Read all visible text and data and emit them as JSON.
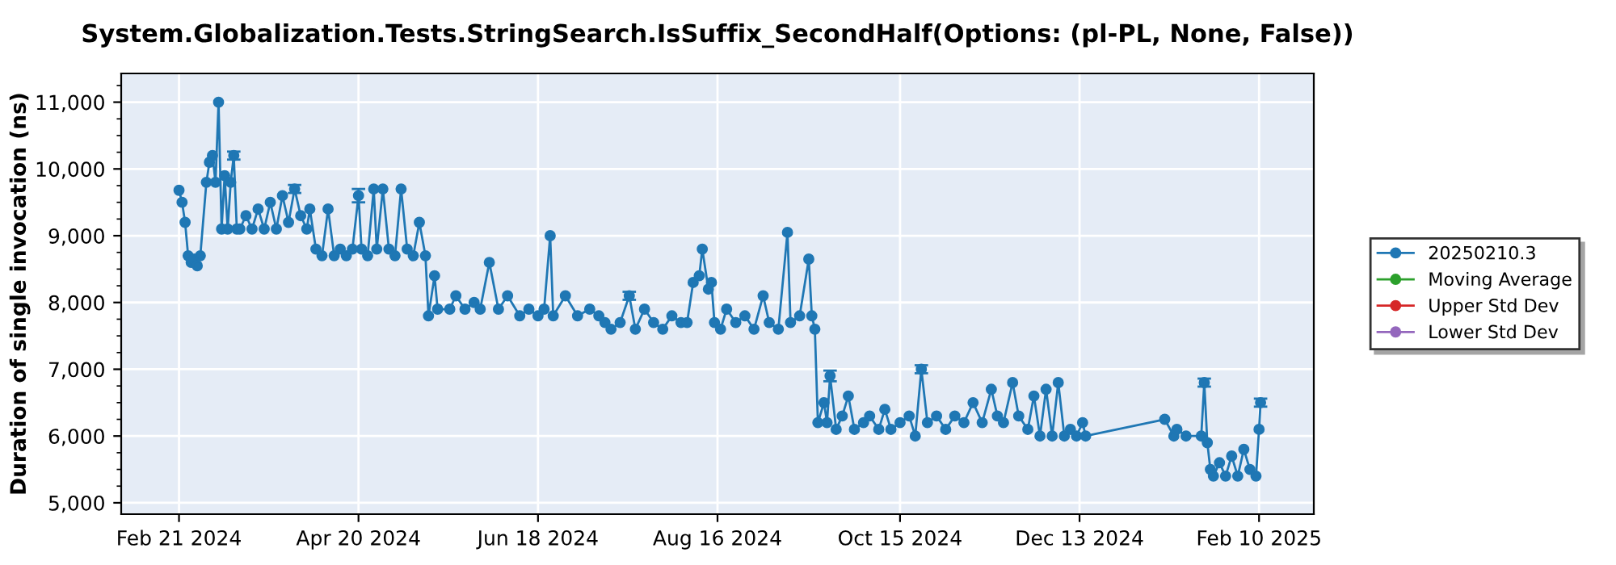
{
  "chart_data": {
    "type": "line",
    "title": "System.Globalization.Tests.StringSearch.IsSuffix_SecondHalf(Options: (pl-PL, None, False))",
    "ylabel": "Duration of single invocation (ns)",
    "x": [
      "2024-02-21",
      "2024-02-22",
      "2024-02-23",
      "2024-02-24",
      "2024-02-25",
      "2024-02-26",
      "2024-02-27",
      "2024-02-28",
      "2024-03-01",
      "2024-03-02",
      "2024-03-03",
      "2024-03-04",
      "2024-03-05",
      "2024-03-06",
      "2024-03-07",
      "2024-03-08",
      "2024-03-09",
      "2024-03-10",
      "2024-03-11",
      "2024-03-12",
      "2024-03-14",
      "2024-03-16",
      "2024-03-18",
      "2024-03-20",
      "2024-03-22",
      "2024-03-24",
      "2024-03-26",
      "2024-03-28",
      "2024-03-30",
      "2024-04-01",
      "2024-04-03",
      "2024-04-04",
      "2024-04-06",
      "2024-04-08",
      "2024-04-10",
      "2024-04-12",
      "2024-04-14",
      "2024-04-16",
      "2024-04-18",
      "2024-04-20",
      "2024-04-21",
      "2024-04-23",
      "2024-04-25",
      "2024-04-26",
      "2024-04-28",
      "2024-04-30",
      "2024-05-02",
      "2024-05-04",
      "2024-05-06",
      "2024-05-08",
      "2024-05-10",
      "2024-05-12",
      "2024-05-13",
      "2024-05-15",
      "2024-05-16",
      "2024-05-20",
      "2024-05-22",
      "2024-05-25",
      "2024-05-28",
      "2024-05-30",
      "2024-06-02",
      "2024-06-05",
      "2024-06-08",
      "2024-06-12",
      "2024-06-15",
      "2024-06-18",
      "2024-06-20",
      "2024-06-22",
      "2024-06-23",
      "2024-06-27",
      "2024-07-01",
      "2024-07-05",
      "2024-07-08",
      "2024-07-10",
      "2024-07-12",
      "2024-07-15",
      "2024-07-18",
      "2024-07-20",
      "2024-07-23",
      "2024-07-26",
      "2024-07-29",
      "2024-08-01",
      "2024-08-04",
      "2024-08-06",
      "2024-08-08",
      "2024-08-10",
      "2024-08-11",
      "2024-08-13",
      "2024-08-14",
      "2024-08-15",
      "2024-08-17",
      "2024-08-19",
      "2024-08-22",
      "2024-08-25",
      "2024-08-28",
      "2024-08-31",
      "2024-09-02",
      "2024-09-05",
      "2024-09-08",
      "2024-09-09",
      "2024-09-12",
      "2024-09-15",
      "2024-09-16",
      "2024-09-17",
      "2024-09-18",
      "2024-09-20",
      "2024-09-21",
      "2024-09-22",
      "2024-09-24",
      "2024-09-26",
      "2024-09-28",
      "2024-09-30",
      "2024-10-03",
      "2024-10-05",
      "2024-10-08",
      "2024-10-10",
      "2024-10-12",
      "2024-10-15",
      "2024-10-18",
      "2024-10-20",
      "2024-10-22",
      "2024-10-24",
      "2024-10-27",
      "2024-10-30",
      "2024-11-02",
      "2024-11-05",
      "2024-11-08",
      "2024-11-11",
      "2024-11-14",
      "2024-11-16",
      "2024-11-18",
      "2024-11-21",
      "2024-11-23",
      "2024-11-26",
      "2024-11-28",
      "2024-11-30",
      "2024-12-02",
      "2024-12-04",
      "2024-12-06",
      "2024-12-08",
      "2024-12-10",
      "2024-12-12",
      "2024-12-14",
      "2024-12-15",
      "2025-01-10",
      "2025-01-13",
      "2025-01-14",
      "2025-01-17",
      "2025-01-22",
      "2025-01-23",
      "2025-01-24",
      "2025-01-25",
      "2025-01-26",
      "2025-01-28",
      "2025-01-30",
      "2025-02-01",
      "2025-02-03",
      "2025-02-05",
      "2025-02-07",
      "2025-02-09",
      "2025-02-10",
      "2025-02-10T12:00"
    ],
    "series": [
      {
        "name": "20250210.3",
        "color": "#1f77b4",
        "values": [
          9680,
          9500,
          9200,
          8700,
          8600,
          8650,
          8550,
          8700,
          9800,
          10100,
          10200,
          9800,
          11000,
          9100,
          9900,
          9100,
          9800,
          10200,
          9100,
          9100,
          9300,
          9100,
          9400,
          9100,
          9500,
          9100,
          9600,
          9200,
          9700,
          9300,
          9100,
          9400,
          8800,
          8700,
          9400,
          8700,
          8800,
          8700,
          8800,
          9600,
          8800,
          8700,
          9700,
          8800,
          9700,
          8800,
          8700,
          9700,
          8800,
          8700,
          9200,
          8700,
          7800,
          8400,
          7900,
          7900,
          8100,
          7900,
          8000,
          7900,
          8600,
          7900,
          8100,
          7800,
          7900,
          7800,
          7900,
          9000,
          7800,
          8100,
          7800,
          7900,
          7800,
          7700,
          7600,
          7700,
          8100,
          7600,
          7900,
          7700,
          7600,
          7800,
          7700,
          7700,
          8300,
          8400,
          8800,
          8200,
          8300,
          7700,
          7600,
          7900,
          7700,
          7800,
          7600,
          8100,
          7700,
          7600,
          9050,
          7700,
          7800,
          8650,
          7800,
          7600,
          6200,
          6500,
          6200,
          6900,
          6100,
          6300,
          6600,
          6100,
          6200,
          6300,
          6100,
          6400,
          6100,
          6200,
          6300,
          6000,
          7000,
          6200,
          6300,
          6100,
          6300,
          6200,
          6500,
          6200,
          6700,
          6300,
          6200,
          6800,
          6300,
          6100,
          6600,
          6000,
          6700,
          6000,
          6800,
          6000,
          6100,
          6000,
          6200,
          6000,
          6250,
          6000,
          6100,
          6000,
          6000,
          6800,
          5900,
          5500,
          5400,
          5600,
          5400,
          5700,
          5400,
          5800,
          5500,
          5400,
          6100,
          6500
        ],
        "errors": [
          null,
          null,
          null,
          null,
          null,
          null,
          null,
          null,
          null,
          null,
          null,
          null,
          null,
          null,
          null,
          null,
          null,
          60,
          null,
          null,
          null,
          null,
          null,
          null,
          null,
          null,
          null,
          null,
          60,
          null,
          null,
          null,
          null,
          null,
          null,
          null,
          null,
          null,
          null,
          100,
          null,
          null,
          null,
          null,
          null,
          null,
          null,
          null,
          null,
          null,
          null,
          null,
          null,
          null,
          null,
          null,
          null,
          null,
          null,
          null,
          null,
          null,
          null,
          null,
          null,
          null,
          null,
          null,
          null,
          null,
          null,
          null,
          null,
          null,
          null,
          null,
          60,
          null,
          null,
          null,
          null,
          null,
          null,
          null,
          null,
          null,
          null,
          null,
          null,
          null,
          null,
          null,
          null,
          null,
          null,
          null,
          null,
          null,
          null,
          null,
          null,
          null,
          null,
          null,
          null,
          null,
          null,
          80,
          null,
          null,
          null,
          null,
          null,
          null,
          null,
          null,
          null,
          null,
          null,
          null,
          60,
          null,
          null,
          null,
          null,
          null,
          null,
          null,
          null,
          null,
          null,
          null,
          null,
          null,
          null,
          null,
          null,
          null,
          null,
          null,
          null,
          null,
          null,
          null,
          null,
          null,
          null,
          null,
          null,
          60,
          null,
          null,
          null,
          null,
          null,
          null,
          null,
          null,
          null,
          null,
          null,
          60
        ]
      },
      {
        "name": "Moving Average",
        "color": "#2ca02c",
        "values": [
          null,
          null,
          null,
          null,
          null,
          null,
          null,
          null,
          null,
          null,
          null,
          null,
          null,
          null,
          null,
          null,
          null,
          null,
          null,
          null,
          null,
          null,
          null,
          null,
          null,
          null,
          null,
          null,
          null,
          null,
          null,
          null,
          null,
          null,
          null,
          null,
          null,
          null,
          null,
          null,
          null,
          null,
          null,
          null,
          null,
          null,
          null,
          null,
          null,
          null,
          null,
          null,
          null,
          null,
          null,
          null,
          null,
          null,
          null,
          null,
          null,
          null,
          null,
          null,
          null,
          null,
          null,
          null,
          null,
          null,
          null,
          null,
          null,
          null,
          null,
          null,
          null,
          null,
          null,
          null,
          null,
          null,
          null,
          null,
          null,
          null,
          null,
          null,
          null,
          null,
          null,
          null,
          null,
          null,
          null,
          null,
          null,
          null,
          null,
          null,
          null,
          null,
          null,
          null,
          null,
          null,
          null,
          null,
          null,
          null,
          null,
          null,
          null,
          null,
          null,
          null,
          null,
          null,
          null,
          null,
          null,
          null,
          null,
          null,
          null,
          null,
          null,
          null,
          null,
          null,
          null,
          null,
          null,
          null,
          null,
          null,
          null,
          null,
          null,
          null,
          null,
          null,
          null,
          null,
          null,
          null,
          null,
          null,
          null,
          null,
          null,
          null,
          null,
          null,
          null,
          null,
          null,
          null,
          null,
          null,
          null,
          null
        ]
      },
      {
        "name": "Upper Std Dev",
        "color": "#d62728",
        "values": [
          null,
          null,
          null,
          null,
          null,
          null,
          null,
          null,
          null,
          null,
          null,
          null,
          null,
          null,
          null,
          null,
          null,
          null,
          null,
          null,
          null,
          null,
          null,
          null,
          null,
          null,
          null,
          null,
          null,
          null,
          null,
          null,
          null,
          null,
          null,
          null,
          null,
          null,
          null,
          null,
          null,
          null,
          null,
          null,
          null,
          null,
          null,
          null,
          null,
          null,
          null,
          null,
          null,
          null,
          null,
          null,
          null,
          null,
          null,
          null,
          null,
          null,
          null,
          null,
          null,
          null,
          null,
          null,
          null,
          null,
          null,
          null,
          null,
          null,
          null,
          null,
          null,
          null,
          null,
          null,
          null,
          null,
          null,
          null,
          null,
          null,
          null,
          null,
          null,
          null,
          null,
          null,
          null,
          null,
          null,
          null,
          null,
          null,
          null,
          null,
          null,
          null,
          null,
          null,
          null,
          null,
          null,
          null,
          null,
          null,
          null,
          null,
          null,
          null,
          null,
          null,
          null,
          null,
          null,
          null,
          null,
          null,
          null,
          null,
          null,
          null,
          null,
          null,
          null,
          null,
          null,
          null,
          null,
          null,
          null,
          null,
          null,
          null,
          null,
          null,
          null,
          null,
          null,
          null,
          null,
          null,
          null,
          null,
          null,
          null,
          null,
          null,
          null,
          null,
          null,
          null,
          null,
          null,
          null,
          null,
          null,
          null
        ]
      },
      {
        "name": "Lower Std Dev",
        "color": "#9467bd",
        "values": [
          null,
          null,
          null,
          null,
          null,
          null,
          null,
          null,
          null,
          null,
          null,
          null,
          null,
          null,
          null,
          null,
          null,
          null,
          null,
          null,
          null,
          null,
          null,
          null,
          null,
          null,
          null,
          null,
          null,
          null,
          null,
          null,
          null,
          null,
          null,
          null,
          null,
          null,
          null,
          null,
          null,
          null,
          null,
          null,
          null,
          null,
          null,
          null,
          null,
          null,
          null,
          null,
          null,
          null,
          null,
          null,
          null,
          null,
          null,
          null,
          null,
          null,
          null,
          null,
          null,
          null,
          null,
          null,
          null,
          null,
          null,
          null,
          null,
          null,
          null,
          null,
          null,
          null,
          null,
          null,
          null,
          null,
          null,
          null,
          null,
          null,
          null,
          null,
          null,
          null,
          null,
          null,
          null,
          null,
          null,
          null,
          null,
          null,
          null,
          null,
          null,
          null,
          null,
          null,
          null,
          null,
          null,
          null,
          null,
          null,
          null,
          null,
          null,
          null,
          null,
          null,
          null,
          null,
          null,
          null,
          null,
          null,
          null,
          null,
          null,
          null,
          null,
          null,
          null,
          null,
          null,
          null,
          null,
          null,
          null,
          null,
          null,
          null,
          null,
          null,
          null,
          null,
          null,
          null,
          null,
          null,
          null,
          null,
          null,
          null,
          null,
          null,
          null,
          null,
          null,
          null,
          null,
          null,
          null,
          null,
          null,
          null
        ]
      }
    ],
    "xlim": [
      "2024-02-02",
      "2025-02-28"
    ],
    "xticks": [
      {
        "value": "2024-02-21",
        "label": "Feb 21 2024"
      },
      {
        "value": "2024-04-20",
        "label": "Apr 20 2024"
      },
      {
        "value": "2024-06-18",
        "label": "Jun 18 2024"
      },
      {
        "value": "2024-08-16",
        "label": "Aug 16 2024"
      },
      {
        "value": "2024-10-15",
        "label": "Oct 15 2024"
      },
      {
        "value": "2024-12-13",
        "label": "Dec 13 2024"
      },
      {
        "value": "2025-02-10",
        "label": "Feb 10 2025"
      }
    ],
    "ylim": [
      4830,
      11430
    ],
    "yticks": [
      {
        "value": 5000,
        "label": "5,000"
      },
      {
        "value": 6000,
        "label": "6,000"
      },
      {
        "value": 7000,
        "label": "7,000"
      },
      {
        "value": 8000,
        "label": "8,000"
      },
      {
        "value": 9000,
        "label": "9,000"
      },
      {
        "value": 10000,
        "label": "10,000"
      },
      {
        "value": 11000,
        "label": "11,000"
      }
    ],
    "grid": true,
    "legend": "right",
    "marker": "circle",
    "line_style": "solid"
  }
}
